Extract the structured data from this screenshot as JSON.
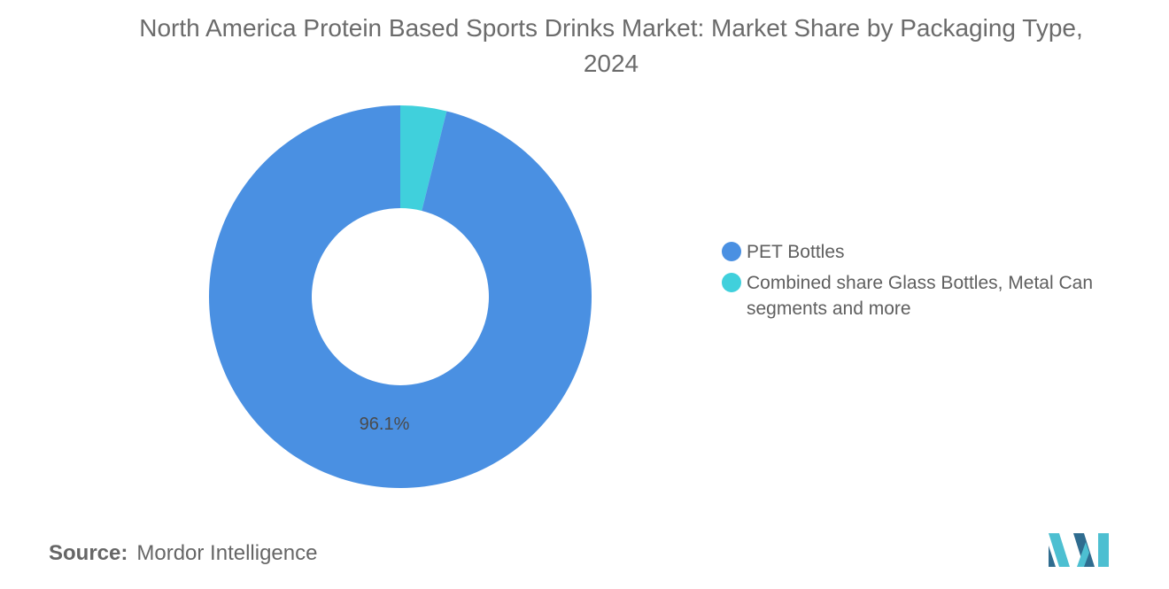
{
  "title": "North America Protein Based Sports Drinks Market: Market Share by Packaging Type, 2024",
  "source_label": "Source:",
  "source_value": "Mordor Intelligence",
  "colors": {
    "pet": "#4a90e2",
    "combined": "#40d0dc",
    "logo_dark": "#2f6c8f",
    "logo_light": "#4dbfd1"
  },
  "chart_data": {
    "type": "pie",
    "variant": "donut",
    "title": "North America Protein Based Sports Drinks Market: Market Share by Packaging Type, 2024",
    "series": [
      {
        "name": "PET Bottles",
        "value": 96.1,
        "label": "96.1%",
        "color": "#4a90e2"
      },
      {
        "name": "Combined share Glass Bottles, Metal Can segments and more",
        "value": 3.9,
        "color": "#40d0dc"
      }
    ],
    "legend_position": "right"
  }
}
